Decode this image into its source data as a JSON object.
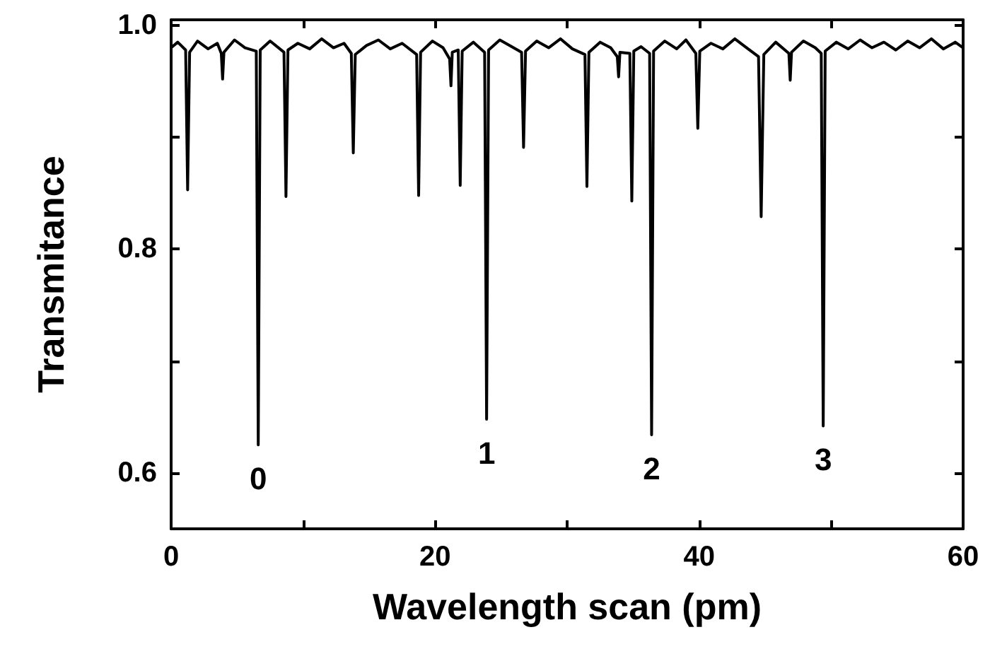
{
  "chart_data": {
    "type": "line",
    "xlabel": "Wavelength scan (pm)",
    "ylabel": "Transmitance",
    "xlim": [
      0,
      60
    ],
    "ylim": [
      0.55,
      1.005
    ],
    "xticks": [
      0,
      {
        "value": 10,
        "label": null
      },
      20,
      {
        "value": 30,
        "label": null
      },
      40,
      {
        "value": 50,
        "label": null
      },
      60
    ],
    "yticks": [
      0.6,
      {
        "value": 0.7,
        "label": null
      },
      0.8,
      {
        "value": 0.9,
        "label": null
      },
      {
        "value": 1,
        "label": "1.0"
      }
    ],
    "grid": false,
    "marker": "none",
    "line_style": "solid",
    "annotations": [
      {
        "text": "0",
        "x": 6.6,
        "y": 0.625
      },
      {
        "text": "1",
        "x": 23.9,
        "y": 0.648
      },
      {
        "text": "2",
        "x": 36.4,
        "y": 0.634
      },
      {
        "text": "3",
        "x": 49.4,
        "y": 0.642
      }
    ],
    "series": [
      {
        "color": "#000000",
        "x": [
          0,
          0.5,
          1.1,
          1.25,
          1.4,
          2,
          2.8,
          3.5,
          3.8,
          3.9,
          4.0,
          4.8,
          5.6,
          6.45,
          6.6,
          6.75,
          7.5,
          8.55,
          8.7,
          8.85,
          9.6,
          10.5,
          11.4,
          12.3,
          13.1,
          13.65,
          13.8,
          13.95,
          14.8,
          15.7,
          16.6,
          17.5,
          18.6,
          18.75,
          18.9,
          19.8,
          20.6,
          21.1,
          21.2,
          21.3,
          21.75,
          21.9,
          22.05,
          22.9,
          23.75,
          23.9,
          24.05,
          24.9,
          25.8,
          26.55,
          26.7,
          26.85,
          27.7,
          28.6,
          29.5,
          30.4,
          31.35,
          31.5,
          31.65,
          32.5,
          33.3,
          33.8,
          33.9,
          34.0,
          34.75,
          34.9,
          35.05,
          35.6,
          36.25,
          36.4,
          36.55,
          37.4,
          38.3,
          39.0,
          39.75,
          39.9,
          40.05,
          40.9,
          41.8,
          42.7,
          43.6,
          44.5,
          44.7,
          44.9,
          45.8,
          46.8,
          46.9,
          47.0,
          47.9,
          48.8,
          49.25,
          49.4,
          49.55,
          50.4,
          51.3,
          52.2,
          53.1,
          54,
          54.9,
          55.8,
          56.7,
          57.6,
          58.5,
          59.4,
          60
        ],
        "values": [
          0.98,
          0.985,
          0.978,
          0.853,
          0.976,
          0.986,
          0.979,
          0.984,
          0.975,
          0.952,
          0.976,
          0.987,
          0.98,
          0.977,
          0.625,
          0.978,
          0.986,
          0.976,
          0.847,
          0.978,
          0.984,
          0.979,
          0.988,
          0.98,
          0.984,
          0.975,
          0.886,
          0.974,
          0.982,
          0.987,
          0.979,
          0.984,
          0.974,
          0.848,
          0.976,
          0.986,
          0.98,
          0.97,
          0.946,
          0.976,
          0.978,
          0.857,
          0.977,
          0.985,
          0.976,
          0.648,
          0.978,
          0.987,
          0.981,
          0.976,
          0.891,
          0.977,
          0.986,
          0.98,
          0.988,
          0.979,
          0.974,
          0.856,
          0.976,
          0.985,
          0.98,
          0.972,
          0.954,
          0.976,
          0.975,
          0.843,
          0.977,
          0.981,
          0.975,
          0.634,
          0.977,
          0.986,
          0.979,
          0.987,
          0.975,
          0.908,
          0.977,
          0.984,
          0.979,
          0.988,
          0.98,
          0.972,
          0.829,
          0.974,
          0.985,
          0.975,
          0.951,
          0.976,
          0.986,
          0.98,
          0.975,
          0.642,
          0.977,
          0.985,
          0.979,
          0.987,
          0.98,
          0.985,
          0.978,
          0.986,
          0.98,
          0.988,
          0.979,
          0.985,
          0.98
        ]
      }
    ]
  }
}
